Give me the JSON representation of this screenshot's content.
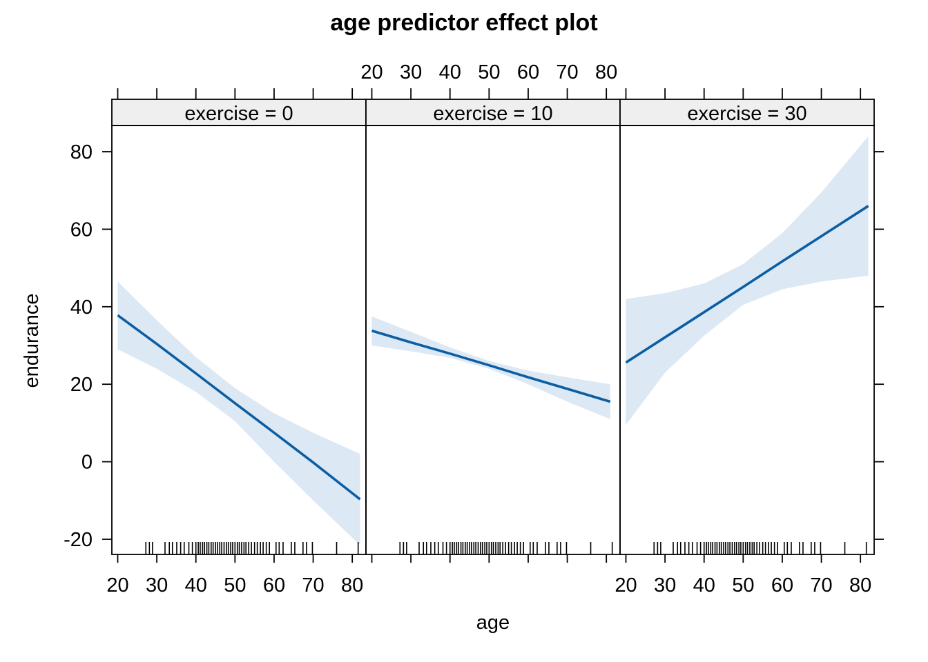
{
  "chart_data": {
    "type": "line",
    "title": "age predictor effect plot",
    "xlabel": "age",
    "ylabel": "endurance",
    "xlim": [
      18.5,
      83.5
    ],
    "ylim": [
      -24,
      87
    ],
    "x_ticks": [
      20,
      30,
      40,
      50,
      60,
      70,
      80
    ],
    "y_ticks": [
      -20,
      0,
      20,
      40,
      60,
      80
    ],
    "line_color": "#0b5ea3",
    "band_color": "#dce8f3",
    "strip_color": "#efefef",
    "panels": [
      {
        "strip_label": "exercise = 0",
        "x": [
          20,
          30,
          40,
          50,
          60,
          70,
          82
        ],
        "fit": [
          37.8,
          30.4,
          22.8,
          15.1,
          7.5,
          -0.2,
          -9.7
        ],
        "lower": [
          29.0,
          24.0,
          18.0,
          10.5,
          0.0,
          -10.0,
          -21.5
        ],
        "upper": [
          46.5,
          36.5,
          27.0,
          19.0,
          12.5,
          7.5,
          2.0
        ]
      },
      {
        "strip_label": "exercise = 10",
        "x": [
          20,
          30,
          40,
          50,
          60,
          70,
          81
        ],
        "fit": [
          33.8,
          30.8,
          27.9,
          24.9,
          21.8,
          18.8,
          15.5
        ],
        "lower": [
          30.0,
          28.5,
          26.8,
          24.0,
          20.0,
          15.5,
          11.0
        ],
        "upper": [
          37.5,
          33.5,
          29.5,
          26.0,
          23.5,
          21.8,
          20.0
        ]
      },
      {
        "strip_label": "exercise = 30",
        "x": [
          20,
          30,
          40,
          50,
          60,
          70,
          82
        ],
        "fit": [
          25.6,
          32.1,
          38.6,
          45.1,
          51.7,
          58.2,
          66.0
        ],
        "lower": [
          9.5,
          23.0,
          32.5,
          40.5,
          44.5,
          46.5,
          48.0
        ],
        "upper": [
          42.0,
          43.5,
          46.0,
          51.0,
          59.0,
          69.5,
          84.0
        ]
      }
    ],
    "rug": [
      [
        27.2,
        28.1,
        28.9,
        32.1,
        33.2,
        34.0,
        35.1,
        36.1,
        37.0,
        38.2,
        39.1,
        40.0,
        40.6,
        41.1,
        41.7,
        42.2,
        42.8,
        43.3,
        43.9,
        44.4,
        45.0,
        45.5,
        46.1,
        46.6,
        47.2,
        47.8,
        48.3,
        48.9,
        49.4,
        50.0,
        50.6,
        51.1,
        51.7,
        52.3,
        52.8,
        53.5,
        54.2,
        55.0,
        55.7,
        56.5,
        57.2,
        58.0,
        58.8,
        60.5,
        61.3,
        62.3,
        64.4,
        65.3,
        67.4,
        68.3,
        69.8,
        76.0,
        81.5
      ],
      [
        27.2,
        28.1,
        28.9,
        32.1,
        33.2,
        34.0,
        35.1,
        36.1,
        37.0,
        38.2,
        39.1,
        40.0,
        40.6,
        41.1,
        41.7,
        42.2,
        42.8,
        43.3,
        43.9,
        44.4,
        45.0,
        45.5,
        46.1,
        46.6,
        47.2,
        47.8,
        48.3,
        48.9,
        49.4,
        50.0,
        50.6,
        51.1,
        51.7,
        52.3,
        52.8,
        53.5,
        54.2,
        55.0,
        55.7,
        56.5,
        57.2,
        58.0,
        58.8,
        60.5,
        61.3,
        62.3,
        64.4,
        65.3,
        67.4,
        68.3,
        69.8,
        76.0,
        81.5
      ],
      [
        27.2,
        28.1,
        28.9,
        32.1,
        33.2,
        34.0,
        35.1,
        36.1,
        37.0,
        38.2,
        39.1,
        40.0,
        40.6,
        41.1,
        41.7,
        42.2,
        42.8,
        43.3,
        43.9,
        44.4,
        45.0,
        45.5,
        46.1,
        46.6,
        47.2,
        47.8,
        48.3,
        48.9,
        49.4,
        50.0,
        50.6,
        51.1,
        51.7,
        52.3,
        52.8,
        53.5,
        54.2,
        55.0,
        55.7,
        56.5,
        57.2,
        58.0,
        58.8,
        60.5,
        61.3,
        62.3,
        64.4,
        65.3,
        67.4,
        68.3,
        69.8,
        76.0,
        81.5
      ]
    ]
  }
}
